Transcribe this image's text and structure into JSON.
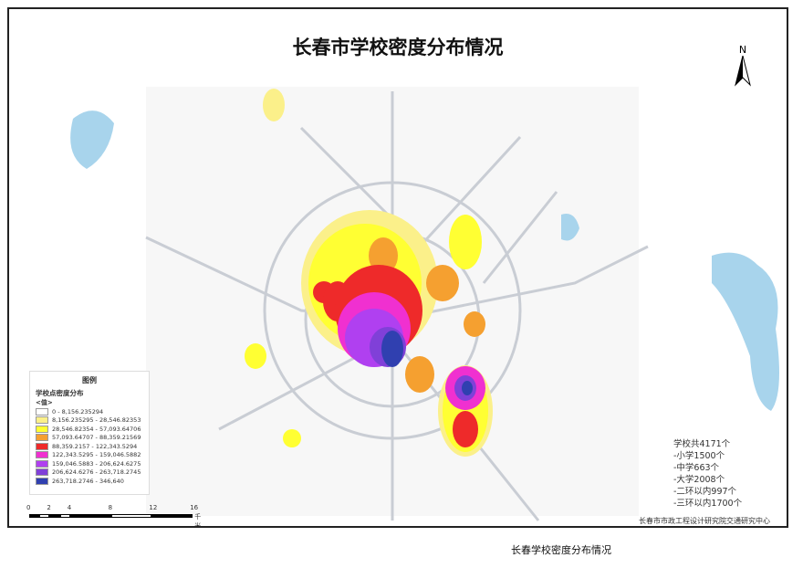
{
  "title": "长春市学校密度分布情况",
  "north_label": "N",
  "legend": {
    "title": "图例",
    "subtitle": "学校点密度分布",
    "value_label": "<值>",
    "classes": [
      {
        "range": "0 - 8,156.235294",
        "color": "#ffffff"
      },
      {
        "range": "8,156.235295 - 28,546.82353",
        "color": "#fbf08a"
      },
      {
        "range": "28,546.82354 - 57,093.64706",
        "color": "#ffff33"
      },
      {
        "range": "57,093.64707 - 88,359.21569",
        "color": "#f5a030"
      },
      {
        "range": "88,359.2157 - 122,343.5294",
        "color": "#ee2a2a"
      },
      {
        "range": "122,343.5295 - 159,046.5882",
        "color": "#f030d0"
      },
      {
        "range": "159,046.5883 - 206,624.6275",
        "color": "#b040f0"
      },
      {
        "range": "206,624.6276 - 263,718.2745",
        "color": "#8040d8"
      },
      {
        "range": "263,718.2746 - 346,640",
        "color": "#3040b0"
      }
    ]
  },
  "scale": {
    "ticks": [
      "0",
      "2",
      "4",
      "8",
      "12",
      "16"
    ],
    "unit": "千米"
  },
  "stats": [
    "学校共4171个",
    "-小学1500个",
    "-中学663个",
    "-大学2008个",
    "-二环以内997个",
    "-三环以内1700个"
  ],
  "organization": "长春市市政工程设计研究院交通研究中心",
  "caption": "长春学校密度分布情况"
}
